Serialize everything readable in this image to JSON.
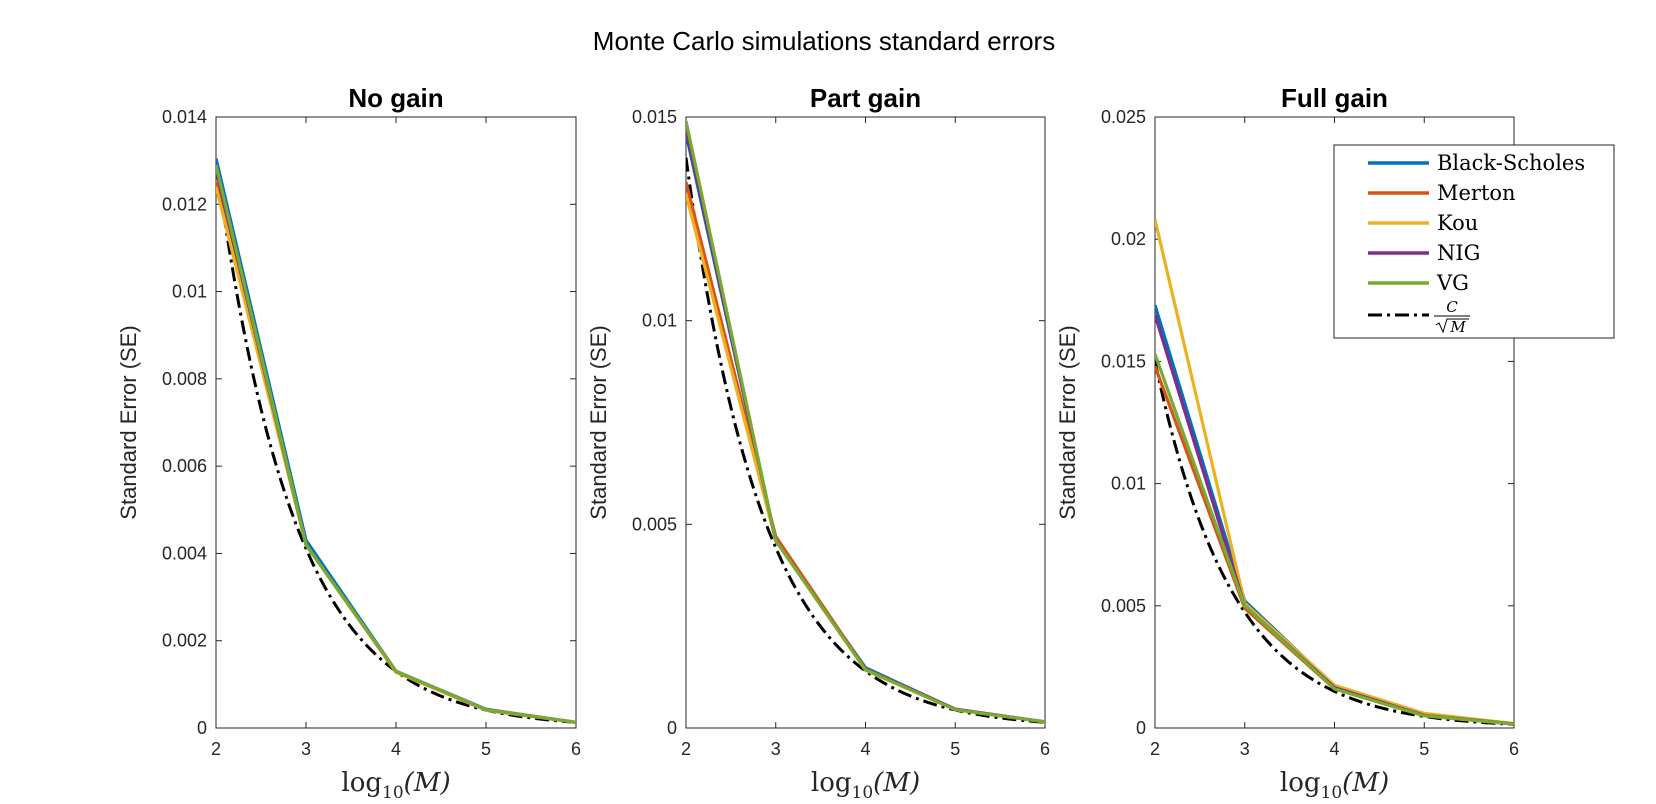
{
  "figure": {
    "title": "Monte Carlo simulations standard errors"
  },
  "xlabel": {
    "base": "log",
    "sub": "10",
    "arg": "(M)"
  },
  "legend": {
    "placement": "top-right",
    "entries": [
      {
        "name": "Black-Scholes",
        "color": "#0072BD",
        "style": "solid"
      },
      {
        "name": "Merton",
        "color": "#D95319",
        "style": "solid"
      },
      {
        "name": "Kou",
        "color": "#EDB120",
        "style": "solid"
      },
      {
        "name": "NIG",
        "color": "#7E2F8E",
        "style": "solid"
      },
      {
        "name": "VG",
        "color": "#77AC30",
        "style": "solid"
      }
    ],
    "reference": {
      "numerator": "C",
      "denominator": "M",
      "color": "#000000",
      "style": "dash-dot"
    }
  },
  "chart_data": [
    {
      "type": "line",
      "title": "No gain",
      "xlabel": "log10(M)",
      "ylabel": "Standard Error (SE)",
      "xlim": [
        2,
        6
      ],
      "ylim": [
        0,
        0.014
      ],
      "xticks": [
        "2",
        "3",
        "4",
        "5",
        "6"
      ],
      "xtick_values": [
        2,
        3,
        4,
        5,
        6
      ],
      "yticks": [
        "0",
        "0.002",
        "0.004",
        "0.006",
        "0.008",
        "0.01",
        "0.012",
        "0.014"
      ],
      "ytick_values": [
        0,
        0.002,
        0.004,
        0.006,
        0.008,
        0.01,
        0.012,
        0.014
      ],
      "grid": false,
      "x": [
        2,
        3,
        4,
        5,
        6
      ],
      "series": [
        {
          "name": "Black-Scholes",
          "values": [
            0.01305,
            0.0043,
            0.0013,
            0.00043,
            0.00013
          ]
        },
        {
          "name": "Merton",
          "values": [
            0.0125,
            0.0042,
            0.00128,
            0.00041,
            0.00013
          ]
        },
        {
          "name": "Kou",
          "values": [
            0.0124,
            0.0042,
            0.00128,
            0.00041,
            0.00013
          ]
        },
        {
          "name": "NIG",
          "values": [
            0.0128,
            0.0042,
            0.0013,
            0.00042,
            0.00013
          ]
        },
        {
          "name": "VG",
          "values": [
            0.0129,
            0.0042,
            0.0013,
            0.00042,
            0.00013
          ]
        }
      ],
      "reference": {
        "C": 0.13,
        "values": [
          0.013,
          0.00411,
          0.0013,
          0.000411,
          0.00013
        ]
      }
    },
    {
      "type": "line",
      "title": "Part gain",
      "xlabel": "log10(M)",
      "ylabel": "Standard Error (SE)",
      "xlim": [
        2,
        6
      ],
      "ylim": [
        0,
        0.015
      ],
      "xticks": [
        "2",
        "3",
        "4",
        "5",
        "6"
      ],
      "xtick_values": [
        2,
        3,
        4,
        5,
        6
      ],
      "yticks": [
        "0",
        "0.005",
        "0.01",
        "0.015"
      ],
      "ytick_values": [
        0,
        0.005,
        0.01,
        0.015
      ],
      "grid": false,
      "x": [
        2,
        3,
        4,
        5,
        6
      ],
      "series": [
        {
          "name": "Black-Scholes",
          "values": [
            0.0146,
            0.0046,
            0.00148,
            0.00046,
            0.00015
          ]
        },
        {
          "name": "Merton",
          "values": [
            0.0134,
            0.0047,
            0.00145,
            0.00046,
            0.00015
          ]
        },
        {
          "name": "Kou",
          "values": [
            0.0131,
            0.0046,
            0.00142,
            0.00045,
            0.00015
          ]
        },
        {
          "name": "NIG",
          "values": [
            0.0147,
            0.0046,
            0.00144,
            0.00046,
            0.00015
          ]
        },
        {
          "name": "VG",
          "values": [
            0.0149,
            0.0046,
            0.00143,
            0.00045,
            0.00015
          ]
        }
      ],
      "reference": {
        "C": 0.14,
        "values": [
          0.014,
          0.00443,
          0.0014,
          0.000443,
          0.00014
        ]
      }
    },
    {
      "type": "line",
      "title": "Full gain",
      "xlabel": "log10(M)",
      "ylabel": "Standard Error (SE)",
      "xlim": [
        2,
        6
      ],
      "ylim": [
        0,
        0.025
      ],
      "xticks": [
        "2",
        "3",
        "4",
        "5",
        "6"
      ],
      "xtick_values": [
        2,
        3,
        4,
        5,
        6
      ],
      "yticks": [
        "0",
        "0.005",
        "0.01",
        "0.015",
        "0.02",
        "0.025"
      ],
      "ytick_values": [
        0,
        0.005,
        0.01,
        0.015,
        0.02,
        0.025
      ],
      "grid": false,
      "x": [
        2,
        3,
        4,
        5,
        6
      ],
      "series": [
        {
          "name": "Black-Scholes",
          "values": [
            0.0173,
            0.0052,
            0.0017,
            0.00055,
            0.00017
          ]
        },
        {
          "name": "Merton",
          "values": [
            0.0148,
            0.0049,
            0.0016,
            0.0005,
            0.00016
          ]
        },
        {
          "name": "Kou",
          "values": [
            0.0208,
            0.0051,
            0.00175,
            0.0006,
            0.00018
          ]
        },
        {
          "name": "NIG",
          "values": [
            0.0169,
            0.005,
            0.00165,
            0.00052,
            0.00017
          ]
        },
        {
          "name": "VG",
          "values": [
            0.0153,
            0.005,
            0.0016,
            0.0005,
            0.00016
          ]
        }
      ],
      "reference": {
        "C": 0.15,
        "values": [
          0.015,
          0.00474,
          0.0015,
          0.000474,
          0.00015
        ]
      }
    }
  ]
}
